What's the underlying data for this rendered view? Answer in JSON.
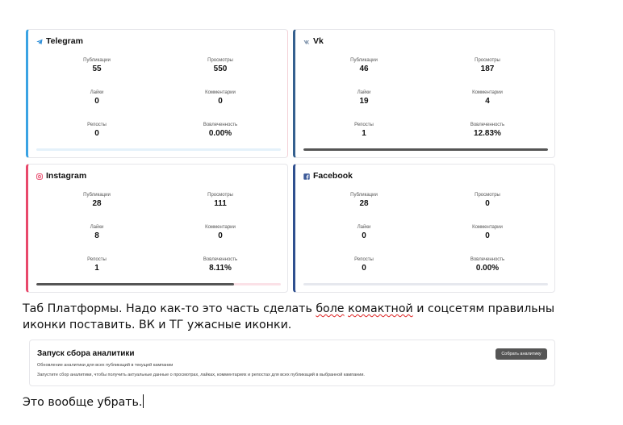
{
  "labels": {
    "publications": "Публикации",
    "views": "Просмотры",
    "likes": "Лайки",
    "comments": "Комментарии",
    "reposts": "Репосты",
    "engagement": "Вовлеченность"
  },
  "platforms": {
    "telegram": {
      "name": "Telegram",
      "icon": "telegram-plane-icon",
      "accent": "#3aa3e3",
      "publications": "55",
      "views": "550",
      "likes": "0",
      "comments": "0",
      "reposts": "0",
      "engagement": "0.00%",
      "engagement_fraction": 0.0
    },
    "vk": {
      "name": "Vk",
      "icon": "vk-icon",
      "accent": "#35608f",
      "publications": "46",
      "views": "187",
      "likes": "19",
      "comments": "4",
      "reposts": "1",
      "engagement": "12.83%",
      "engagement_fraction": 1.0
    },
    "instagram": {
      "name": "Instagram",
      "icon": "instagram-icon",
      "accent": "#e8486b",
      "publications": "28",
      "views": "111",
      "likes": "8",
      "comments": "0",
      "reposts": "1",
      "engagement": "8.11%",
      "engagement_fraction": 0.81
    },
    "facebook": {
      "name": "Facebook",
      "icon": "facebook-icon",
      "accent": "#2f4f8f",
      "publications": "28",
      "views": "0",
      "likes": "0",
      "comments": "0",
      "reposts": "0",
      "engagement": "0.00%",
      "engagement_fraction": 0.0
    }
  },
  "note1": {
    "line1_before": "Таб Платформы. Надо как-то это часть сделать ",
    "line1_spell1": "боле",
    "line1_space": " ",
    "line1_spell2": "комактной",
    "line1_after": " и соцсетям правильны",
    "line2": "иконки поставить. ВК и ТГ ужасные иконки."
  },
  "analytics_panel": {
    "title": "Запуск сбора аналитики",
    "subtitle": "Обновление аналитики для всех публикаций в текущей кампании",
    "description": "Запустите сбор аналитики, чтобы получить актуальные данные о просмотрах, лайках, комментариях и репостах для всех публикаций в выбранной кампании.",
    "button_label": "Собрать аналитику"
  },
  "note2": "Это вообще убрать."
}
